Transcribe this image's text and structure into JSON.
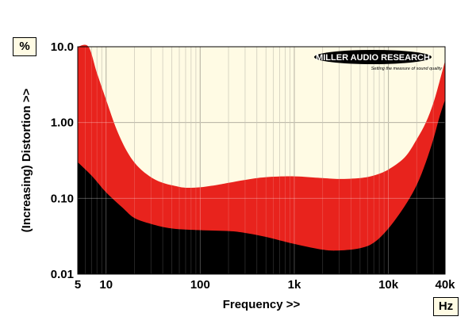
{
  "chart_data": {
    "type": "area",
    "xlabel": "Frequency >>",
    "ylabel": "(Increasing) Distortion >>",
    "x_unit": "Hz",
    "y_unit": "%",
    "x_scale": "log",
    "y_scale": "log",
    "xlim": [
      5,
      40000
    ],
    "ylim": [
      0.01,
      10
    ],
    "x_ticks": [
      5,
      10,
      100,
      1000,
      10000,
      40000
    ],
    "x_tick_labels": [
      "5",
      "10",
      "100",
      "1k",
      "10k",
      "40k"
    ],
    "y_ticks": [
      0.01,
      0.1,
      1,
      10
    ],
    "y_tick_labels": [
      "0.01",
      "0.10",
      "1.00",
      "10.0"
    ],
    "grid": true,
    "series": [
      {
        "role": "upper-band-edge",
        "color": "#e8231d",
        "points": [
          [
            5,
            10
          ],
          [
            6.5,
            10
          ],
          [
            8,
            4.5
          ],
          [
            10,
            2.0
          ],
          [
            13,
            0.8
          ],
          [
            17,
            0.4
          ],
          [
            22,
            0.26
          ],
          [
            30,
            0.19
          ],
          [
            40,
            0.16
          ],
          [
            55,
            0.145
          ],
          [
            70,
            0.138
          ],
          [
            100,
            0.14
          ],
          [
            150,
            0.15
          ],
          [
            200,
            0.16
          ],
          [
            300,
            0.175
          ],
          [
            500,
            0.19
          ],
          [
            1000,
            0.195
          ],
          [
            2000,
            0.185
          ],
          [
            3000,
            0.18
          ],
          [
            5000,
            0.185
          ],
          [
            7000,
            0.2
          ],
          [
            10000,
            0.24
          ],
          [
            15000,
            0.35
          ],
          [
            20000,
            0.6
          ],
          [
            25000,
            1.0
          ],
          [
            30000,
            1.8
          ],
          [
            35000,
            3.5
          ],
          [
            40000,
            6.5
          ]
        ]
      },
      {
        "role": "lower-band-edge",
        "color": "#000000",
        "points": [
          [
            5,
            0.3
          ],
          [
            7,
            0.2
          ],
          [
            10,
            0.12
          ],
          [
            15,
            0.075
          ],
          [
            20,
            0.055
          ],
          [
            30,
            0.046
          ],
          [
            50,
            0.04
          ],
          [
            100,
            0.038
          ],
          [
            200,
            0.037
          ],
          [
            300,
            0.035
          ],
          [
            500,
            0.031
          ],
          [
            1000,
            0.025
          ],
          [
            2000,
            0.021
          ],
          [
            3000,
            0.0205
          ],
          [
            5000,
            0.022
          ],
          [
            7000,
            0.026
          ],
          [
            10000,
            0.04
          ],
          [
            15000,
            0.08
          ],
          [
            20000,
            0.15
          ],
          [
            25000,
            0.3
          ],
          [
            30000,
            0.6
          ],
          [
            35000,
            1.2
          ],
          [
            40000,
            2.0
          ]
        ]
      }
    ]
  },
  "logo": {
    "text": "MILLER AUDIO RESEARCH",
    "tagline": "Setting the measure of sound quality"
  },
  "colors": {
    "plot_background": "#fffbe4",
    "band": "#e8231d",
    "floor": "#000000",
    "grid": "#c8c4b0"
  }
}
